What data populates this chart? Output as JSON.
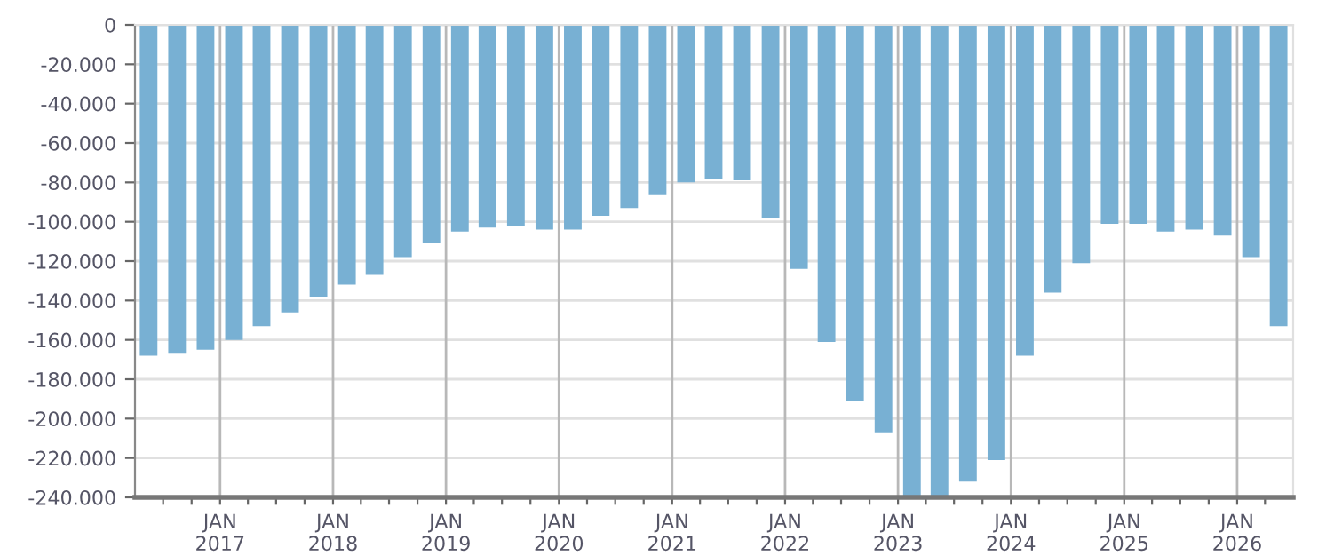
{
  "chart_data": {
    "type": "bar",
    "color": "#78b0d3",
    "grid": true,
    "x": [
      "2016-05-15",
      "2016-08-15",
      "2016-11-15",
      "2017-02-15",
      "2017-05-15",
      "2017-08-15",
      "2017-11-15",
      "2018-02-15",
      "2018-05-15",
      "2018-08-15",
      "2018-11-15",
      "2019-02-15",
      "2019-05-15",
      "2019-08-15",
      "2019-11-15",
      "2020-02-15",
      "2020-05-15",
      "2020-08-15",
      "2020-11-15",
      "2021-02-15",
      "2021-05-15",
      "2021-08-15",
      "2021-11-15",
      "2022-02-15",
      "2022-05-15",
      "2022-08-15",
      "2022-11-15",
      "2023-02-15",
      "2023-05-15",
      "2023-08-15",
      "2023-11-15",
      "2024-02-15",
      "2024-05-15",
      "2024-08-15",
      "2024-11-15",
      "2025-02-15",
      "2025-05-15",
      "2025-08-15",
      "2025-11-15",
      "2026-02-15",
      "2026-05-15"
    ],
    "values": [
      -168000,
      -167000,
      -165000,
      -160000,
      -153000,
      -146000,
      -138000,
      -132000,
      -127000,
      -118000,
      -111000,
      -105000,
      -103000,
      -102000,
      -104000,
      -104000,
      -97000,
      -93000,
      -86000,
      -80000,
      -78000,
      -79000,
      -98000,
      -124000,
      -161000,
      -191000,
      -207000,
      -240000,
      -240000,
      -232000,
      -221000,
      -168000,
      -136000,
      -121000,
      -101000,
      -101000,
      -105000,
      -104000,
      -107000,
      -118000,
      -153000
    ],
    "xlim": [
      "2016-04-01",
      "2026-07-01"
    ],
    "xticks": [
      {
        "value": "2016-07-01",
        "label": null
      },
      {
        "value": "2016-10-01",
        "label": null
      },
      {
        "value": "2017-01-01",
        "label": "JAN\n2017"
      },
      {
        "value": "2017-04-01",
        "label": null
      },
      {
        "value": "2017-07-01",
        "label": null
      },
      {
        "value": "2017-10-01",
        "label": null
      },
      {
        "value": "2018-01-01",
        "label": "JAN\n2018"
      },
      {
        "value": "2018-04-01",
        "label": null
      },
      {
        "value": "2018-07-01",
        "label": null
      },
      {
        "value": "2018-10-01",
        "label": null
      },
      {
        "value": "2019-01-01",
        "label": "JAN\n2019"
      },
      {
        "value": "2019-04-01",
        "label": null
      },
      {
        "value": "2019-07-01",
        "label": null
      },
      {
        "value": "2019-10-01",
        "label": null
      },
      {
        "value": "2020-01-01",
        "label": "JAN\n2020"
      },
      {
        "value": "2020-04-01",
        "label": null
      },
      {
        "value": "2020-07-01",
        "label": null
      },
      {
        "value": "2020-10-01",
        "label": null
      },
      {
        "value": "2021-01-01",
        "label": "JAN\n2021"
      },
      {
        "value": "2021-04-01",
        "label": null
      },
      {
        "value": "2021-07-01",
        "label": null
      },
      {
        "value": "2021-10-01",
        "label": null
      },
      {
        "value": "2022-01-01",
        "label": "JAN\n2022"
      },
      {
        "value": "2022-04-01",
        "label": null
      },
      {
        "value": "2022-07-01",
        "label": null
      },
      {
        "value": "2022-10-01",
        "label": null
      },
      {
        "value": "2023-01-01",
        "label": "JAN\n2023"
      },
      {
        "value": "2023-04-01",
        "label": null
      },
      {
        "value": "2023-07-01",
        "label": null
      },
      {
        "value": "2023-10-01",
        "label": null
      },
      {
        "value": "2024-01-01",
        "label": "JAN\n2024"
      },
      {
        "value": "2024-04-01",
        "label": null
      },
      {
        "value": "2024-07-01",
        "label": null
      },
      {
        "value": "2024-10-01",
        "label": null
      },
      {
        "value": "2025-01-01",
        "label": "JAN\n2025"
      },
      {
        "value": "2025-04-01",
        "label": null
      },
      {
        "value": "2025-07-01",
        "label": null
      },
      {
        "value": "2025-10-01",
        "label": null
      },
      {
        "value": "2026-01-01",
        "label": "JAN\n2026"
      },
      {
        "value": "2026-04-01",
        "label": null
      }
    ],
    "ylim": [
      -240000,
      0
    ],
    "yticks": [
      {
        "value": -240000,
        "label": "-240.000"
      },
      {
        "value": -220000,
        "label": "-220.000"
      },
      {
        "value": -200000,
        "label": "-200.000"
      },
      {
        "value": -180000,
        "label": "-180.000"
      },
      {
        "value": -160000,
        "label": "-160.000"
      },
      {
        "value": -140000,
        "label": "-140.000"
      },
      {
        "value": -120000,
        "label": "-120.000"
      },
      {
        "value": -100000,
        "label": "-100.000"
      },
      {
        "value": -80000,
        "label": "-80.000"
      },
      {
        "value": -60000,
        "label": "-60.000"
      },
      {
        "value": -40000,
        "label": "-40.000"
      },
      {
        "value": -20000,
        "label": "-20.000"
      },
      {
        "value": 0,
        "label": "0"
      }
    ]
  }
}
